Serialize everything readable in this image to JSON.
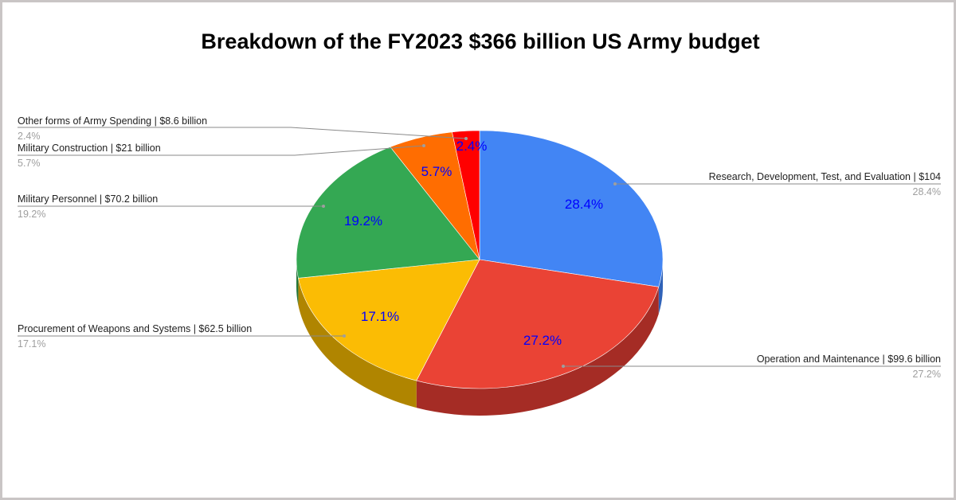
{
  "chart_data": {
    "type": "pie",
    "style": "3d",
    "title": "Breakdown of the FY2023 $366 billion US Army budget",
    "slices": [
      {
        "label": "Research, Development, Test, and Evaluation  | $104",
        "percent_label": "28.4%",
        "value": 28.4,
        "color": "#4285f4",
        "side_color": "#2f62b8"
      },
      {
        "label": "Operation and Maintenance | $99.6 billion",
        "percent_label": "27.2%",
        "value": 27.2,
        "color": "#ea4335",
        "side_color": "#a52c25"
      },
      {
        "label": "Procurement of Weapons and Systems | $62.5 billion",
        "percent_label": "17.1%",
        "value": 17.1,
        "color": "#fbbc04",
        "side_color": "#b08500"
      },
      {
        "label": "Military Personnel | $70.2 billion",
        "percent_label": "19.2%",
        "value": 19.2,
        "color": "#34a853",
        "side_color": "#24763a"
      },
      {
        "label": "Military Construction | $21 billion",
        "percent_label": "5.7%",
        "value": 5.7,
        "color": "#ff6d01",
        "side_color": "#b34c00"
      },
      {
        "label": "Other forms of Army Spending | $8.6 billion",
        "percent_label": "2.4%",
        "value": 2.4,
        "color": "#ff0000",
        "side_color": "#b30000"
      }
    ],
    "inner_label_color": "#0000ff",
    "legend": "labeled leader lines"
  }
}
